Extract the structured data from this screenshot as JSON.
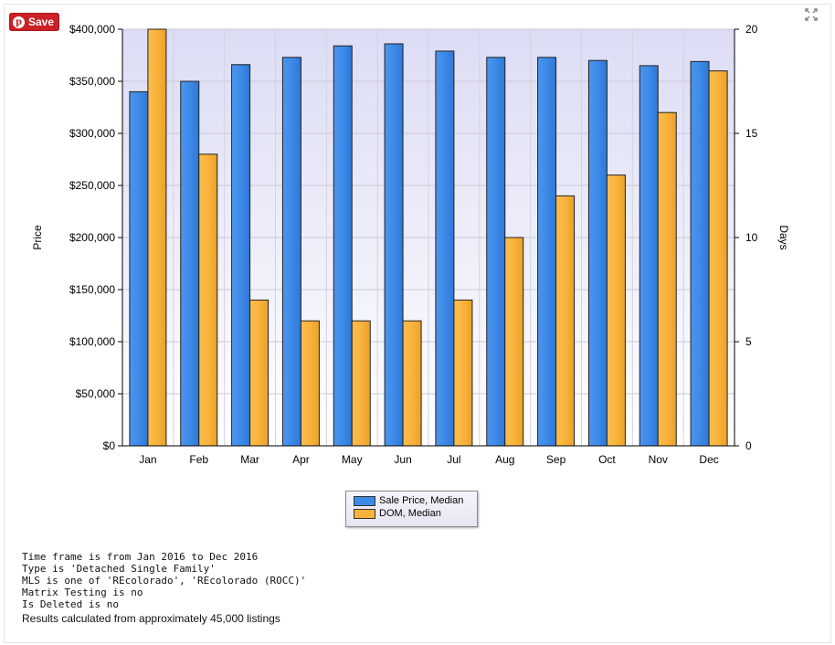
{
  "save_button": {
    "label": "Save",
    "icon": "pinterest-icon"
  },
  "expand_icon": "expand-icon",
  "chart_data": {
    "type": "bar",
    "categories": [
      "Jan",
      "Feb",
      "Mar",
      "Apr",
      "May",
      "Jun",
      "Jul",
      "Aug",
      "Sep",
      "Oct",
      "Nov",
      "Dec"
    ],
    "series": [
      {
        "name": "Sale Price, Median",
        "axis": "left",
        "color": "#3d8ae8",
        "values": [
          340000,
          350000,
          366000,
          373000,
          384000,
          386000,
          379000,
          373000,
          373000,
          370000,
          365000,
          369000
        ]
      },
      {
        "name": "DOM, Median",
        "axis": "right",
        "color": "#f9b33b",
        "values": [
          20,
          14,
          7,
          6,
          6,
          6,
          7,
          10,
          12,
          13,
          16,
          18
        ]
      }
    ],
    "ylabel": "Price",
    "y2label": "Days",
    "ylim": [
      0,
      400000
    ],
    "y2lim": [
      0,
      20
    ],
    "yticks": [
      "$0",
      "$50,000",
      "$100,000",
      "$150,000",
      "$200,000",
      "$250,000",
      "$300,000",
      "$350,000",
      "$400,000"
    ],
    "y2ticks": [
      "0",
      "5",
      "10",
      "15",
      "20"
    ],
    "grid": true,
    "legend_position": "bottom-center"
  },
  "notes": [
    "Time frame is from Jan 2016 to Dec 2016",
    "Type is 'Detached Single Family'",
    "MLS is one of 'REcolorado', 'REcolorado (ROCC)'",
    "Matrix Testing is no",
    "Is Deleted is no"
  ],
  "results_note": "Results calculated from approximately 45,000 listings"
}
